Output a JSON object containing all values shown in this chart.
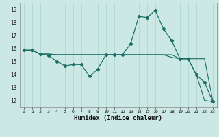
{
  "xlabel": "Humidex (Indice chaleur)",
  "bg_color": "#cce8e4",
  "grid_color": "#aad4cf",
  "line_color": "#1a6e64",
  "xlim": [
    -0.5,
    23.5
  ],
  "ylim": [
    11.5,
    19.5
  ],
  "xticks": [
    0,
    1,
    2,
    3,
    4,
    5,
    6,
    7,
    8,
    9,
    10,
    11,
    12,
    13,
    14,
    15,
    16,
    17,
    18,
    19,
    20,
    21,
    22,
    23
  ],
  "yticks": [
    12,
    13,
    14,
    15,
    16,
    17,
    18,
    19
  ],
  "series1_x": [
    0,
    1,
    2,
    3,
    4,
    5,
    6,
    7,
    8,
    9,
    10,
    11,
    12,
    13,
    14,
    15,
    16,
    17,
    18,
    19,
    20,
    21,
    22,
    23
  ],
  "series1_y": [
    15.85,
    15.85,
    15.55,
    15.45,
    15.0,
    14.65,
    14.75,
    14.75,
    13.85,
    14.4,
    15.5,
    15.5,
    15.5,
    16.35,
    18.45,
    18.35,
    18.9,
    17.5,
    16.6,
    15.2,
    15.2,
    13.95,
    13.4,
    11.9
  ],
  "series2_x": [
    0,
    1,
    2,
    3,
    4,
    5,
    6,
    7,
    8,
    9,
    10,
    11,
    12,
    13,
    14,
    15,
    16,
    17,
    18,
    19,
    20,
    21,
    22,
    23
  ],
  "series2_y": [
    15.85,
    15.85,
    15.55,
    15.55,
    15.5,
    15.5,
    15.5,
    15.5,
    15.5,
    15.5,
    15.5,
    15.5,
    15.5,
    15.5,
    15.5,
    15.5,
    15.5,
    15.5,
    15.5,
    15.2,
    15.2,
    15.2,
    15.2,
    12.0
  ],
  "series3_x": [
    0,
    1,
    2,
    3,
    4,
    5,
    6,
    7,
    8,
    9,
    10,
    11,
    12,
    13,
    14,
    15,
    16,
    17,
    18,
    19,
    20,
    21,
    22,
    23
  ],
  "series3_y": [
    15.85,
    15.85,
    15.55,
    15.55,
    15.5,
    15.5,
    15.5,
    15.5,
    15.5,
    15.5,
    15.5,
    15.5,
    15.5,
    15.5,
    15.5,
    15.5,
    15.5,
    15.5,
    15.3,
    15.2,
    15.2,
    14.0,
    12.0,
    11.9
  ]
}
